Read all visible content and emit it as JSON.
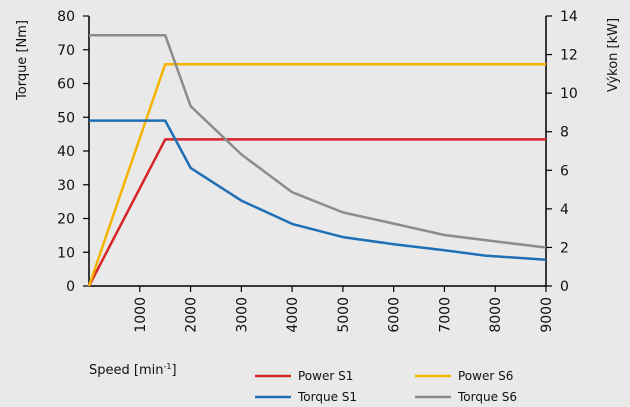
{
  "chart_data": {
    "type": "line",
    "xlabel": "Speed [min",
    "xlabel_sup": "-1",
    "xlabel_suffix": "]",
    "ylabel_left": "Torque  [Nm]",
    "ylabel_right": "Výkon [kW]",
    "xlim": [
      0,
      9000
    ],
    "ylim_left": [
      0,
      80
    ],
    "ylim_right": [
      0,
      14
    ],
    "x_ticks": [
      1000,
      2000,
      3000,
      4000,
      5000,
      6000,
      7000,
      8000,
      9000
    ],
    "y_ticks_left": [
      0,
      10,
      20,
      30,
      40,
      50,
      60,
      70,
      80
    ],
    "y_ticks_right": [
      0,
      2,
      4,
      6,
      8,
      10,
      12,
      14
    ],
    "grid": false,
    "legend_position": "bottom-right",
    "series": [
      {
        "name": "Power S1",
        "axis": "right",
        "color": "#d7262a",
        "points": [
          [
            0,
            0
          ],
          [
            1500,
            7.6
          ],
          [
            9000,
            7.6
          ]
        ]
      },
      {
        "name": "Power S6",
        "axis": "right",
        "color": "#f5b400",
        "points": [
          [
            0,
            0
          ],
          [
            1500,
            11.5
          ],
          [
            9000,
            11.5
          ]
        ]
      },
      {
        "name": "Torque S1",
        "axis": "left",
        "color": "#1f6fb5",
        "points": [
          [
            0,
            49
          ],
          [
            1500,
            49
          ],
          [
            2000,
            35
          ],
          [
            3000,
            25.3
          ],
          [
            4000,
            18.4
          ],
          [
            5000,
            14.5
          ],
          [
            6000,
            12.4
          ],
          [
            7000,
            10.6
          ],
          [
            7800,
            9
          ],
          [
            9000,
            7.8
          ]
        ]
      },
      {
        "name": "Torque S6",
        "axis": "left",
        "color": "#8c8c8c",
        "points": [
          [
            0,
            74.3
          ],
          [
            1500,
            74.3
          ],
          [
            2000,
            53.3
          ],
          [
            3000,
            39
          ],
          [
            4000,
            27.8
          ],
          [
            5000,
            21.8
          ],
          [
            6000,
            18.5
          ],
          [
            7000,
            15.1
          ],
          [
            8000,
            13.2
          ],
          [
            9000,
            11.4
          ]
        ]
      }
    ],
    "legend": [
      {
        "label": "Power S1",
        "color": "#d7262a"
      },
      {
        "label": "Power S6",
        "color": "#f5b400"
      },
      {
        "label": "Torque S1",
        "color": "#1f6fb5"
      },
      {
        "label": "Torque S6",
        "color": "#8c8c8c"
      }
    ]
  }
}
